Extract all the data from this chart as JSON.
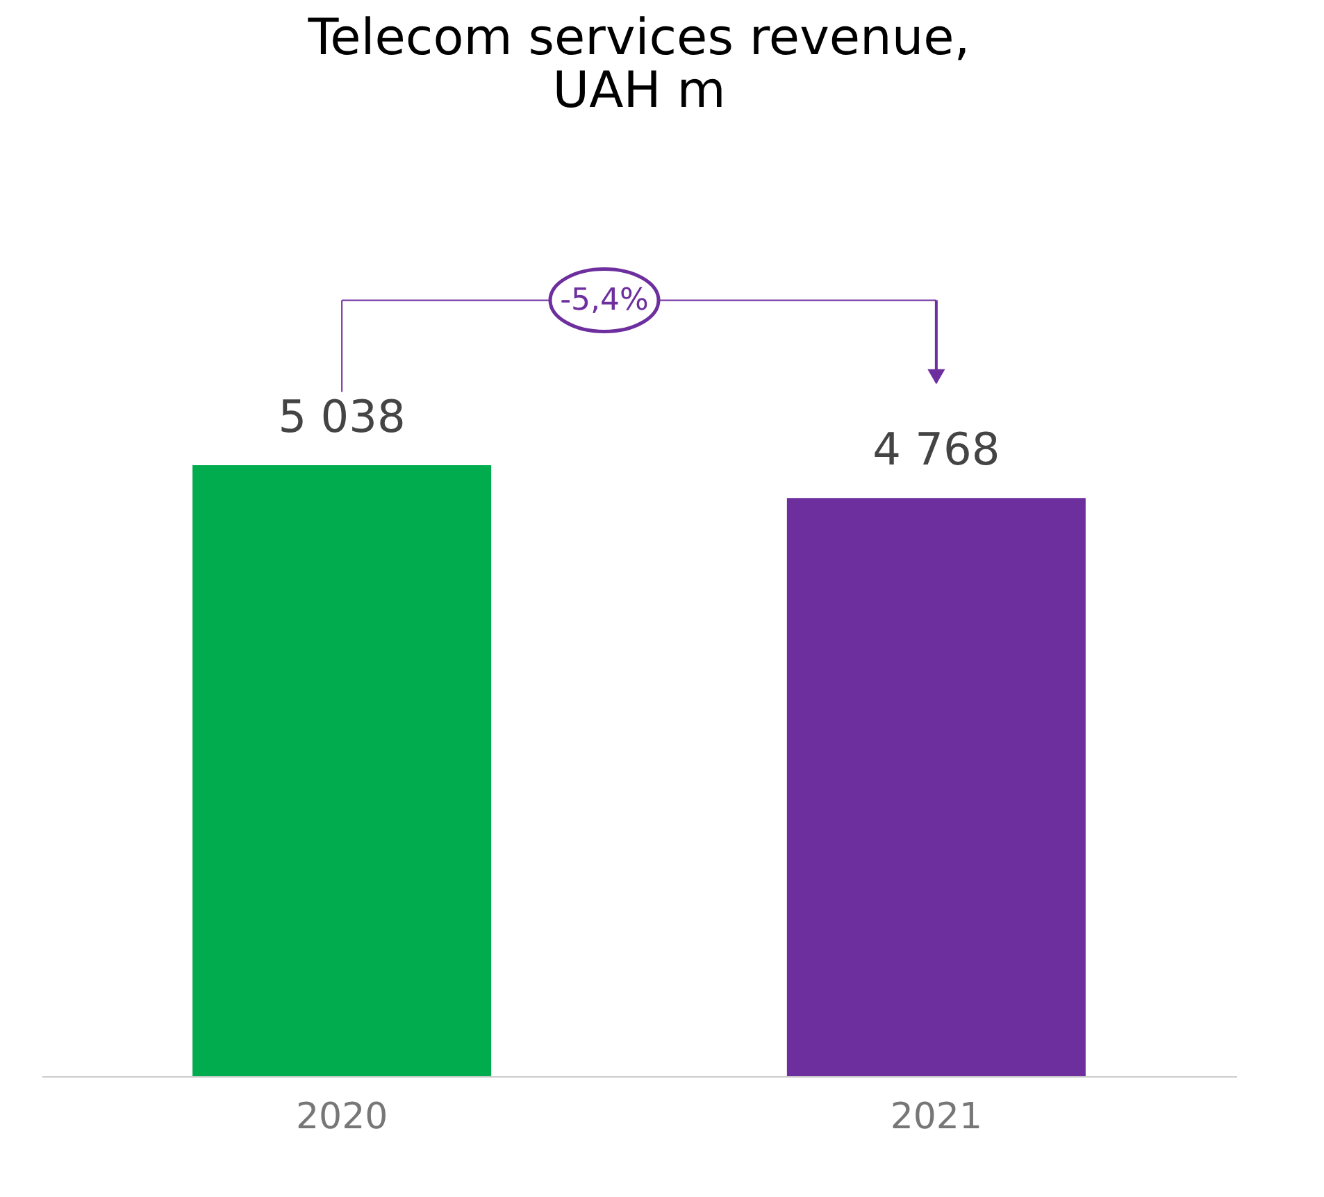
{
  "chart_data": {
    "type": "bar",
    "title": "Telecom services revenue,\nUAH m",
    "categories": [
      "2020",
      "2021"
    ],
    "values": [
      5038,
      4768
    ],
    "colors": [
      "#00ac4e",
      "#6e2f9e"
    ],
    "value_labels": [
      "5 038",
      "4 768"
    ],
    "annotations": [
      "-5,4%"
    ]
  }
}
